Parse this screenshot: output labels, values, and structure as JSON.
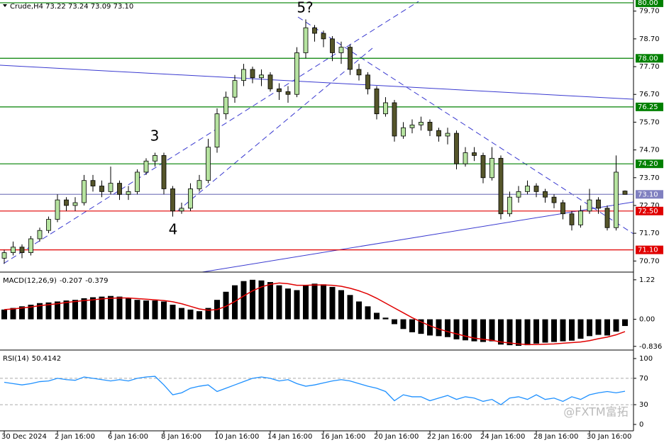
{
  "chart_data": [
    {
      "type": "candlestick",
      "title": "Crude,H4 73.22 73.24 73.09 73.10",
      "open": [
        70.8,
        71.0,
        71.2,
        71.0,
        71.5,
        71.8,
        72.2,
        72.9,
        72.7,
        72.8,
        73.6,
        73.4,
        73.2,
        73.5,
        73.1,
        73.2,
        73.9,
        74.3,
        74.5,
        73.3,
        72.5,
        72.6,
        73.3,
        73.6,
        74.8,
        76.0,
        76.6,
        77.2,
        77.6,
        77.3,
        77.4,
        76.9,
        76.8,
        76.7,
        78.2,
        79.1,
        78.9,
        78.7,
        78.2,
        78.4,
        77.6,
        77.4,
        76.9,
        76.0,
        76.4,
        75.2,
        75.5,
        75.6,
        75.7,
        75.4,
        75.2,
        75.3,
        74.2,
        74.6,
        74.5,
        73.7,
        74.4,
        72.4,
        73.0,
        73.2,
        73.4,
        73.2,
        73.0,
        72.8,
        72.4,
        72.0,
        72.5,
        72.9,
        72.6,
        71.9,
        73.22
      ],
      "high": [
        71.1,
        71.4,
        71.3,
        71.6,
        71.9,
        72.3,
        73.1,
        73.0,
        73.0,
        73.8,
        73.8,
        73.6,
        74.1,
        73.6,
        73.4,
        74.0,
        74.4,
        74.6,
        74.6,
        73.4,
        72.8,
        73.5,
        73.8,
        75.1,
        76.2,
        76.8,
        77.4,
        77.8,
        77.7,
        77.6,
        77.5,
        77.1,
        77.0,
        78.4,
        79.4,
        79.2,
        79.0,
        78.8,
        78.6,
        78.5,
        77.8,
        77.5,
        77.0,
        76.6,
        76.5,
        75.7,
        75.8,
        75.9,
        75.8,
        75.5,
        75.5,
        75.4,
        74.8,
        74.8,
        74.6,
        74.8,
        74.5,
        73.2,
        73.4,
        73.6,
        73.5,
        73.3,
        73.1,
        72.9,
        72.5,
        72.7,
        73.3,
        73.0,
        72.7,
        74.5,
        73.24
      ],
      "low": [
        70.6,
        70.9,
        70.8,
        70.9,
        71.4,
        71.7,
        72.1,
        72.5,
        72.5,
        72.7,
        73.2,
        73.0,
        73.1,
        72.9,
        72.9,
        73.1,
        73.8,
        74.1,
        73.1,
        72.3,
        72.4,
        72.5,
        73.2,
        73.5,
        74.6,
        75.8,
        76.4,
        77.0,
        77.1,
        77.0,
        76.8,
        76.5,
        76.4,
        76.6,
        78.0,
        78.6,
        78.4,
        77.9,
        77.8,
        77.4,
        77.2,
        76.7,
        75.8,
        75.9,
        75.0,
        75.1,
        75.3,
        75.4,
        75.2,
        75.0,
        74.9,
        74.0,
        74.1,
        74.3,
        73.5,
        73.6,
        72.2,
        72.3,
        72.8,
        73.1,
        73.0,
        72.8,
        72.6,
        72.2,
        71.8,
        71.9,
        72.4,
        72.4,
        71.8,
        71.8,
        73.09
      ],
      "close": [
        71.0,
        71.2,
        71.0,
        71.5,
        71.8,
        72.2,
        72.9,
        72.7,
        72.8,
        73.6,
        73.4,
        73.2,
        73.5,
        73.1,
        73.2,
        73.9,
        74.3,
        74.5,
        73.3,
        72.5,
        72.6,
        73.3,
        73.6,
        74.8,
        76.0,
        76.6,
        77.2,
        77.6,
        77.3,
        77.4,
        76.9,
        76.8,
        76.7,
        78.2,
        79.1,
        78.9,
        78.7,
        78.2,
        78.4,
        77.6,
        77.4,
        76.9,
        76.0,
        76.4,
        75.2,
        75.5,
        75.6,
        75.7,
        75.4,
        75.2,
        75.3,
        74.2,
        74.6,
        74.5,
        73.7,
        74.4,
        72.4,
        73.0,
        73.2,
        73.4,
        73.2,
        73.0,
        72.8,
        72.4,
        72.0,
        72.5,
        72.9,
        72.6,
        71.9,
        73.9,
        73.1
      ],
      "up_color": "#b6e3a0",
      "down_color": "#55552a",
      "ylim": [
        70.3,
        80.1
      ],
      "yticks": [
        {
          "value": 79.7,
          "label": "79.70"
        },
        {
          "value": 78.7,
          "label": "78.70"
        },
        {
          "value": 77.7,
          "label": "77.70"
        },
        {
          "value": 76.7,
          "label": "76.70"
        },
        {
          "value": 75.7,
          "label": "75.70"
        },
        {
          "value": 74.7,
          "label": "74.70"
        },
        {
          "value": 73.7,
          "label": "73.70"
        },
        {
          "value": 72.7,
          "label": "72.70"
        },
        {
          "value": 71.7,
          "label": "71.70"
        },
        {
          "value": 70.7,
          "label": "70.70"
        }
      ],
      "levels": [
        {
          "value": 80,
          "label": "80.00",
          "color": "#008000"
        },
        {
          "value": 78,
          "label": "78.00",
          "color": "#008000"
        },
        {
          "value": 76.25,
          "label": "76.25",
          "color": "#008000"
        },
        {
          "value": 74.2,
          "label": "74.20",
          "color": "#008000"
        },
        {
          "value": 73.1,
          "label": "73.10",
          "color": "#8080c0"
        },
        {
          "value": 72.5,
          "label": "72.50",
          "color": "#e00000"
        },
        {
          "value": 71.1,
          "label": "71.10",
          "color": "#e00000"
        }
      ],
      "annotations": [
        "3",
        "4",
        "5?"
      ]
    },
    {
      "type": "macd",
      "title": "MACD(12,26,9)",
      "histogram": [
        0.3,
        0.35,
        0.4,
        0.45,
        0.5,
        0.52,
        0.55,
        0.58,
        0.6,
        0.65,
        0.68,
        0.7,
        0.72,
        0.7,
        0.65,
        0.6,
        0.58,
        0.58,
        0.55,
        0.45,
        0.35,
        0.3,
        0.25,
        0.35,
        0.6,
        0.85,
        1.05,
        1.18,
        1.22,
        1.2,
        1.15,
        1.05,
        0.95,
        0.9,
        1.05,
        1.1,
        1.08,
        1.0,
        0.9,
        0.75,
        0.55,
        0.4,
        0.2,
        0.05,
        -0.15,
        -0.3,
        -0.4,
        -0.45,
        -0.5,
        -0.52,
        -0.55,
        -0.62,
        -0.65,
        -0.68,
        -0.7,
        -0.68,
        -0.78,
        -0.8,
        -0.82,
        -0.8,
        -0.75,
        -0.72,
        -0.7,
        -0.68,
        -0.66,
        -0.6,
        -0.52,
        -0.48,
        -0.5,
        -0.38,
        -0.207
      ],
      "signal": [
        0.3,
        0.32,
        0.35,
        0.38,
        0.42,
        0.45,
        0.48,
        0.52,
        0.55,
        0.58,
        0.6,
        0.63,
        0.65,
        0.66,
        0.66,
        0.64,
        0.62,
        0.6,
        0.58,
        0.54,
        0.48,
        0.4,
        0.32,
        0.28,
        0.3,
        0.4,
        0.55,
        0.72,
        0.88,
        1.0,
        1.08,
        1.12,
        1.1,
        1.05,
        1.05,
        1.06,
        1.06,
        1.05,
        1.02,
        0.96,
        0.88,
        0.78,
        0.65,
        0.5,
        0.35,
        0.2,
        0.05,
        -0.08,
        -0.2,
        -0.3,
        -0.38,
        -0.45,
        -0.52,
        -0.58,
        -0.62,
        -0.65,
        -0.7,
        -0.73,
        -0.76,
        -0.78,
        -0.78,
        -0.77,
        -0.76,
        -0.74,
        -0.72,
        -0.7,
        -0.66,
        -0.6,
        -0.55,
        -0.48,
        -0.379
      ],
      "histogram_color": "#000000",
      "signal_color": "#e00000",
      "ylim": [
        -0.95,
        1.37
      ],
      "yticks": [
        1.22,
        {
          "value": 0,
          "label": "0.00"
        },
        -0.836
      ]
    },
    {
      "type": "line",
      "title": "RSI(14)",
      "categories": [
        "30 Dec 2024",
        null,
        null,
        null,
        null,
        null,
        "2 Jan 16:00",
        null,
        null,
        null,
        null,
        null,
        "6 Jan 16:00",
        null,
        null,
        null,
        null,
        null,
        "8 Jan 16:00",
        null,
        null,
        null,
        null,
        null,
        "10 Jan 16:00",
        null,
        null,
        null,
        null,
        null,
        "14 Jan 16:00",
        null,
        null,
        null,
        null,
        null,
        "16 Jan 16:00",
        null,
        null,
        null,
        null,
        null,
        "20 Jan 16:00",
        null,
        null,
        null,
        null,
        null,
        "22 Jan 16:00",
        null,
        null,
        null,
        null,
        null,
        "24 Jan 16:00",
        null,
        null,
        null,
        null,
        null,
        "28 Jan 16:00",
        null,
        null,
        null,
        null,
        null,
        "30 Jan 16:00",
        null,
        null,
        null,
        null
      ],
      "values": [
        64,
        62,
        60,
        62,
        65,
        66,
        70,
        68,
        67,
        72,
        70,
        68,
        66,
        68,
        66,
        70,
        72,
        73,
        60,
        45,
        48,
        55,
        58,
        60,
        50,
        55,
        60,
        65,
        70,
        72,
        70,
        66,
        68,
        62,
        58,
        60,
        63,
        66,
        68,
        66,
        62,
        58,
        55,
        50,
        36,
        45,
        42,
        42,
        36,
        40,
        44,
        38,
        42,
        40,
        35,
        38,
        30,
        40,
        42,
        38,
        45,
        38,
        40,
        35,
        42,
        38,
        45,
        48,
        50,
        48,
        50.4142
      ],
      "color": "#1e90ff",
      "ylim": [
        -9.7,
        108.6
      ],
      "yticks": [
        100,
        70,
        30,
        0
      ],
      "grid": true
    }
  ],
  "watermark": "@FXTM富拓"
}
